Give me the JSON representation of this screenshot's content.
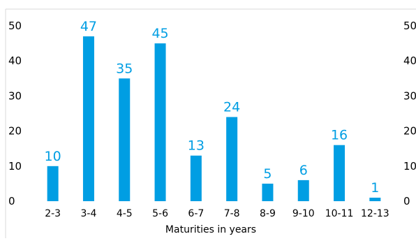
{
  "chart_data": {
    "type": "bar",
    "title": "",
    "xlabel": "Maturities in years",
    "ylabel": "",
    "categories": [
      "2-3",
      "3-4",
      "4-5",
      "5-6",
      "6-7",
      "7-8",
      "8-9",
      "9-10",
      "10-11",
      "12-13"
    ],
    "values": [
      10,
      47,
      35,
      45,
      13,
      24,
      5,
      6,
      16,
      1
    ],
    "data_labels": [
      "10",
      "47",
      "35",
      "45",
      "13",
      "24",
      "5",
      "6",
      "16",
      "1"
    ],
    "ylim": [
      0,
      50
    ],
    "yticks": [
      "0",
      "10",
      "20",
      "30",
      "40",
      "50"
    ],
    "secondary_yticks": [
      "0",
      "10",
      "20",
      "30",
      "40",
      "50"
    ],
    "grid": false,
    "legend": "none",
    "colors": {
      "bar": "#009ee3",
      "data_label": "#009ee3",
      "frame": "#d9d9d9",
      "text": "#000000"
    }
  }
}
